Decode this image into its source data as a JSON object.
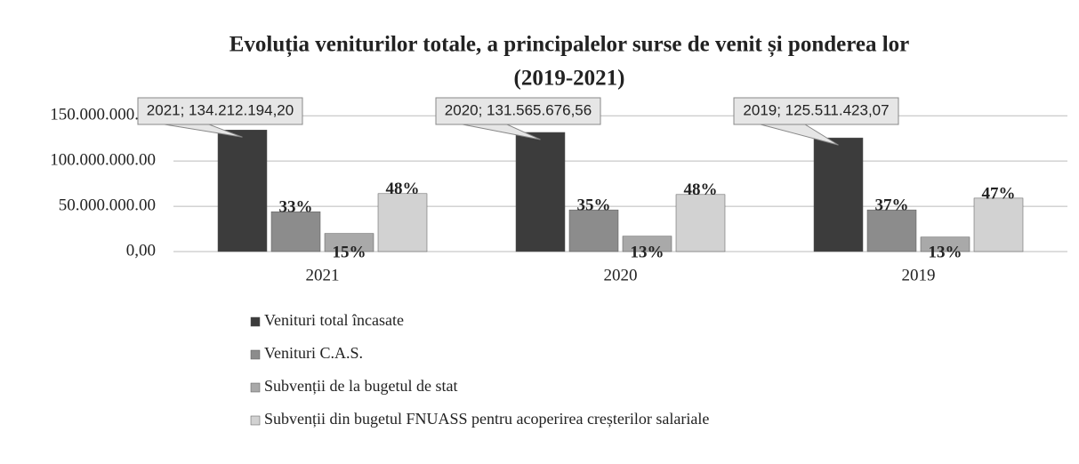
{
  "chart_data": {
    "type": "bar",
    "title": "Evoluția veniturilor totale, a principalelor surse de venit și ponderea lor",
    "subtitle": "(2019-2021)",
    "categories": [
      "2021",
      "2020",
      "2019"
    ],
    "series": [
      {
        "name": "Venituri total încasate",
        "color": "#3c3c3c",
        "values": [
          134212194.2,
          131565676.56,
          125511423.07
        ],
        "value_labels": [
          "2021; 134.212.194,20",
          "2020; 131.565.676,56",
          "2019; 125.511.423,07"
        ]
      },
      {
        "name": "Venituri C.A.S.",
        "color": "#8c8c8c",
        "values": [
          44000000,
          46000000,
          46000000
        ],
        "share_labels": [
          "33%",
          "35%",
          "37%"
        ]
      },
      {
        "name": "Subvenții de la bugetul de stat",
        "color": "#a9a9a9",
        "values": [
          20000000,
          17000000,
          16000000
        ],
        "share_labels": [
          "15%",
          "13%",
          "13%"
        ]
      },
      {
        "name": "Subvenții din bugetul FNUASS pentru acoperirea creșterilor salariale",
        "color": "#d2d2d2",
        "values": [
          64000000,
          63000000,
          59000000
        ],
        "share_labels": [
          "48%",
          "48%",
          "47%"
        ]
      }
    ],
    "ylim": [
      0,
      160000000
    ],
    "yticks": [
      {
        "value": 0,
        "label": "0,00"
      },
      {
        "value": 50000000,
        "label": "50.000.000.00"
      },
      {
        "value": 100000000,
        "label": "100.000.000.00"
      },
      {
        "value": 150000000,
        "label": "150.000.000.00"
      }
    ],
    "grid": true
  }
}
